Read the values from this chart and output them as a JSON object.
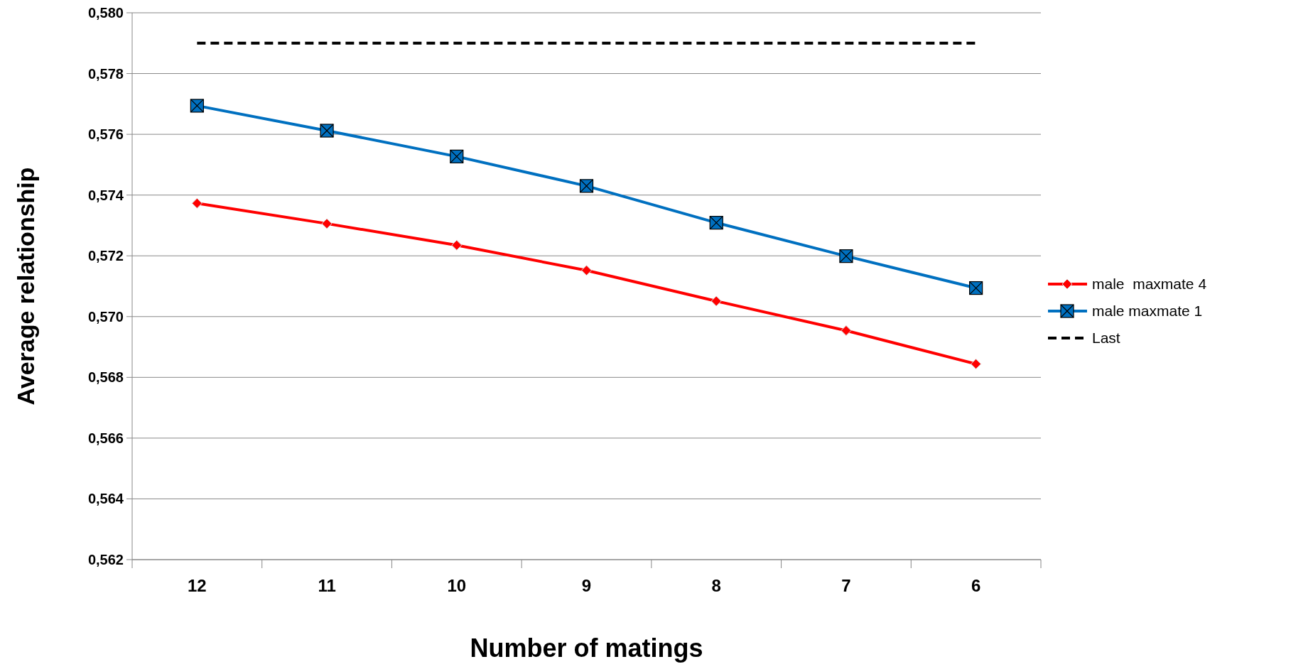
{
  "chart_data": {
    "type": "line",
    "xlabel": "Number of matings",
    "ylabel": "Average relationship",
    "categories": [
      "12",
      "11",
      "10",
      "9",
      "8",
      "7",
      "6"
    ],
    "series": [
      {
        "name": "male  maxmate 4",
        "color": "#ff0000",
        "marker": "diamond",
        "line_style": "solid",
        "values": [
          0.57373,
          0.57306,
          0.57235,
          0.57152,
          0.57051,
          0.56954,
          0.56844
        ]
      },
      {
        "name": "male maxmate 1",
        "color": "#0070c0",
        "marker": "square",
        "line_style": "solid",
        "values": [
          0.57694,
          0.57612,
          0.57527,
          0.5743,
          0.57309,
          0.57199,
          0.57094
        ]
      },
      {
        "name": "Last",
        "color": "#000000",
        "marker": "none",
        "line_style": "dashed",
        "values": [
          0.579,
          0.579,
          0.579,
          0.579,
          0.579,
          0.579,
          0.579
        ]
      }
    ],
    "ylim": [
      0.562,
      0.58
    ],
    "yticks": [
      {
        "value": 0.562,
        "label": "0,562"
      },
      {
        "value": 0.564,
        "label": "0,564"
      },
      {
        "value": 0.566,
        "label": "0,566"
      },
      {
        "value": 0.568,
        "label": "0,568"
      },
      {
        "value": 0.57,
        "label": "0,570"
      },
      {
        "value": 0.572,
        "label": "0,572"
      },
      {
        "value": 0.574,
        "label": "0,574"
      },
      {
        "value": 0.576,
        "label": "0,576"
      },
      {
        "value": 0.578,
        "label": "0,578"
      },
      {
        "value": 0.58,
        "label": "0,580"
      }
    ],
    "grid": "y",
    "legend": "right"
  }
}
